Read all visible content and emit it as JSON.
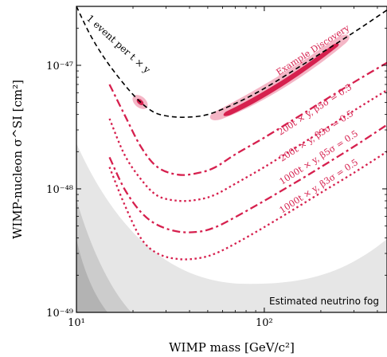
{
  "chart_data": {
    "type": "line",
    "title": "",
    "xlabel": "WIMP mass [GeV/c²]",
    "ylabel": "WIMP-nucleon σ^SI [cm²]",
    "xscale": "log",
    "yscale": "log",
    "xlim": [
      10,
      450
    ],
    "ylim": [
      1e-49,
      3e-47
    ],
    "x_ticks": [
      {
        "value": 10,
        "label": "10¹"
      },
      {
        "value": 100,
        "label": "10²"
      }
    ],
    "y_ticks": [
      {
        "value": 1e-49,
        "label": "10⁻⁴⁹"
      },
      {
        "value": 1e-48,
        "label": "10⁻⁴⁸"
      },
      {
        "value": 1e-47,
        "label": "10⁻⁴⁷"
      }
    ],
    "colors": {
      "accent": "#d6204e",
      "band_dark": "#d6204e",
      "band_light": "#f4b6c6",
      "fog_light": "#e6e6e6",
      "fog_mid": "#cccccc",
      "fog_dark": "#b3b3b3"
    },
    "series": [
      {
        "label": "1 event per t × y",
        "style": "dashed-black",
        "x": [
          10,
          12,
          15,
          20,
          25,
          30,
          38,
          50,
          70,
          100,
          150,
          200,
          300,
          450
        ],
        "y": [
          3e-47,
          1.7e-47,
          1e-47,
          5.8e-48,
          4.3e-48,
          3.9e-48,
          3.8e-48,
          4e-48,
          4.9e-48,
          6.5e-48,
          9.5e-48,
          1.25e-47,
          1.85e-47,
          2.8e-47
        ]
      },
      {
        "label": "200t × y, β5σ = 0.5",
        "style": "dashdot",
        "x": [
          15,
          18,
          22,
          27,
          35,
          45,
          55,
          70,
          100,
          150,
          200,
          300,
          450
        ],
        "y": [
          7e-48,
          4e-48,
          2.2e-48,
          1.5e-48,
          1.3e-48,
          1.35e-48,
          1.5e-48,
          1.9e-48,
          2.6e-48,
          3.8e-48,
          5e-48,
          7.3e-48,
          1.05e-47
        ]
      },
      {
        "label": "200t × y, β3σ = 0.5",
        "style": "dotted",
        "x": [
          15,
          18,
          22,
          27,
          35,
          45,
          55,
          70,
          100,
          150,
          200,
          300,
          450
        ],
        "y": [
          3.7e-48,
          1.9e-48,
          1.2e-48,
          8.8e-49,
          8e-49,
          8.2e-49,
          9e-49,
          1.1e-48,
          1.5e-48,
          2.2e-48,
          2.9e-48,
          4.3e-48,
          6.3e-48
        ]
      },
      {
        "label": "1000t × y, β5σ = 0.5",
        "style": "dashdot",
        "x": [
          15,
          18,
          22,
          27,
          35,
          45,
          55,
          70,
          100,
          150,
          200,
          300,
          450
        ],
        "y": [
          1.8e-48,
          1e-48,
          6.5e-49,
          5.1e-49,
          4.5e-49,
          4.5e-49,
          4.9e-49,
          5.9e-49,
          8e-49,
          1.15e-48,
          1.5e-48,
          2.2e-48,
          3.3e-48
        ]
      },
      {
        "label": "1000t × y, β3σ = 0.5",
        "style": "dotted",
        "x": [
          15,
          18,
          22,
          27,
          35,
          45,
          55,
          70,
          100,
          150,
          200,
          300,
          450
        ],
        "y": [
          1.5e-48,
          7.5e-49,
          4e-49,
          3e-49,
          2.7e-49,
          2.75e-49,
          3e-49,
          3.6e-49,
          4.9e-49,
          7.1e-49,
          9.3e-49,
          1.35e-48,
          2e-48
        ]
      }
    ],
    "annotations": [
      {
        "text": "Example Discovery",
        "role": "discovery"
      },
      {
        "text": "Estimated neutrino fog",
        "role": "fog"
      }
    ]
  }
}
